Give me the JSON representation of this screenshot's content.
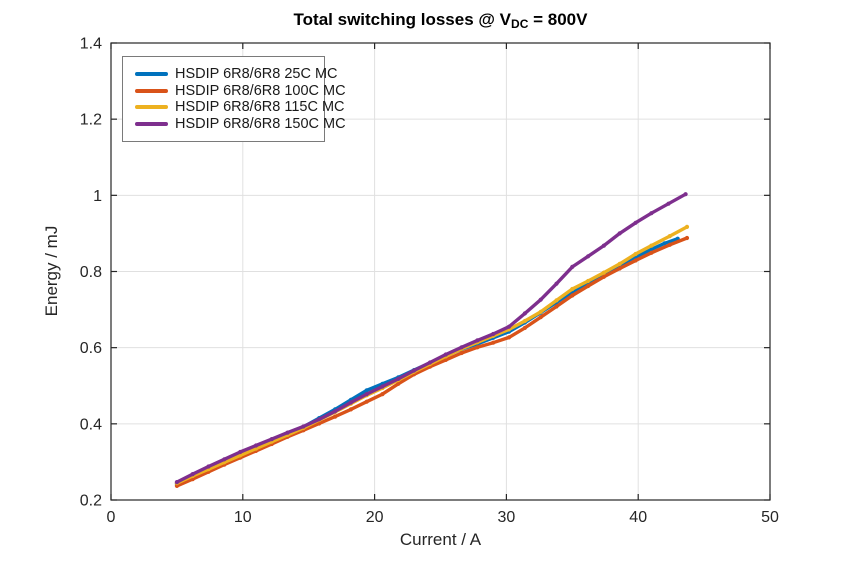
{
  "colors": {
    "axis": "#262626",
    "tick_text": "#262626",
    "grid": "#e0e0e0",
    "background": "#ffffff",
    "legend_border": "#7a7a7a"
  },
  "chart_data": {
    "type": "line",
    "title": {
      "prefix": "Total switching losses @ V",
      "subscript": "DC",
      "suffix": " = 800V"
    },
    "xlabel": "Current / A",
    "ylabel": "Energy / mJ",
    "xlim": [
      0,
      50
    ],
    "ylim": [
      0.2,
      1.4
    ],
    "xticks": [
      0,
      10,
      20,
      30,
      40,
      50
    ],
    "xtick_labels": [
      "0",
      "10",
      "20",
      "30",
      "40",
      "50"
    ],
    "yticks": [
      0.2,
      0.4,
      0.6,
      0.8,
      1.0,
      1.2,
      1.4
    ],
    "ytick_labels": [
      "0.2",
      "0.4",
      "0.6",
      "0.8",
      "1",
      "1.2",
      "1.4"
    ],
    "grid": true,
    "legend_position": "top-left",
    "series": [
      {
        "name": "HSDIP 6R8/6R8 25C MC",
        "color": "#0072BD",
        "points": [
          [
            5.0,
            0.242
          ],
          [
            6.2,
            0.262
          ],
          [
            7.4,
            0.281
          ],
          [
            8.6,
            0.3
          ],
          [
            9.8,
            0.32
          ],
          [
            11.0,
            0.337
          ],
          [
            12.2,
            0.355
          ],
          [
            13.4,
            0.374
          ],
          [
            14.6,
            0.392
          ],
          [
            15.8,
            0.415
          ],
          [
            17.0,
            0.438
          ],
          [
            18.2,
            0.463
          ],
          [
            19.4,
            0.488
          ],
          [
            20.6,
            0.505
          ],
          [
            21.8,
            0.522
          ],
          [
            23.0,
            0.541
          ],
          [
            24.2,
            0.56
          ],
          [
            25.4,
            0.578
          ],
          [
            26.6,
            0.596
          ],
          [
            27.8,
            0.61
          ],
          [
            29.0,
            0.626
          ],
          [
            30.2,
            0.642
          ],
          [
            31.4,
            0.666
          ],
          [
            32.6,
            0.692
          ],
          [
            33.8,
            0.719
          ],
          [
            35.0,
            0.746
          ],
          [
            36.2,
            0.77
          ],
          [
            37.4,
            0.793
          ],
          [
            38.6,
            0.816
          ],
          [
            39.8,
            0.838
          ],
          [
            41.0,
            0.858
          ],
          [
            42.0,
            0.874
          ],
          [
            43.0,
            0.886
          ]
        ]
      },
      {
        "name": "HSDIP 6R8/6R8 100C MC",
        "color": "#D95319",
        "points": [
          [
            5.0,
            0.237
          ],
          [
            6.2,
            0.255
          ],
          [
            7.4,
            0.274
          ],
          [
            8.6,
            0.293
          ],
          [
            9.8,
            0.311
          ],
          [
            11.0,
            0.329
          ],
          [
            12.2,
            0.347
          ],
          [
            13.4,
            0.366
          ],
          [
            14.6,
            0.383
          ],
          [
            15.8,
            0.401
          ],
          [
            17.0,
            0.419
          ],
          [
            18.2,
            0.438
          ],
          [
            19.4,
            0.458
          ],
          [
            20.6,
            0.478
          ],
          [
            21.8,
            0.505
          ],
          [
            23.0,
            0.53
          ],
          [
            24.2,
            0.55
          ],
          [
            25.4,
            0.568
          ],
          [
            26.6,
            0.586
          ],
          [
            27.8,
            0.601
          ],
          [
            29.0,
            0.613
          ],
          [
            30.2,
            0.627
          ],
          [
            31.4,
            0.652
          ],
          [
            32.6,
            0.68
          ],
          [
            33.8,
            0.708
          ],
          [
            35.0,
            0.737
          ],
          [
            36.2,
            0.762
          ],
          [
            37.4,
            0.786
          ],
          [
            38.6,
            0.808
          ],
          [
            39.8,
            0.829
          ],
          [
            41.0,
            0.849
          ],
          [
            42.4,
            0.87
          ],
          [
            43.7,
            0.888
          ]
        ]
      },
      {
        "name": "HSDIP 6R8/6R8 115C MC",
        "color": "#EDB120",
        "points": [
          [
            5.0,
            0.244
          ],
          [
            6.2,
            0.263
          ],
          [
            7.4,
            0.281
          ],
          [
            8.6,
            0.299
          ],
          [
            9.8,
            0.317
          ],
          [
            11.0,
            0.335
          ],
          [
            12.2,
            0.353
          ],
          [
            13.4,
            0.371
          ],
          [
            14.6,
            0.389
          ],
          [
            15.8,
            0.41
          ],
          [
            17.0,
            0.431
          ],
          [
            18.2,
            0.453
          ],
          [
            19.4,
            0.475
          ],
          [
            20.6,
            0.494
          ],
          [
            21.8,
            0.515
          ],
          [
            23.0,
            0.537
          ],
          [
            24.2,
            0.557
          ],
          [
            25.4,
            0.577
          ],
          [
            26.6,
            0.597
          ],
          [
            27.8,
            0.614
          ],
          [
            29.0,
            0.631
          ],
          [
            30.2,
            0.648
          ],
          [
            31.4,
            0.67
          ],
          [
            32.6,
            0.694
          ],
          [
            33.8,
            0.724
          ],
          [
            35.0,
            0.754
          ],
          [
            36.2,
            0.775
          ],
          [
            37.4,
            0.797
          ],
          [
            38.6,
            0.82
          ],
          [
            39.8,
            0.846
          ],
          [
            41.0,
            0.868
          ],
          [
            42.4,
            0.893
          ],
          [
            43.7,
            0.917
          ]
        ]
      },
      {
        "name": "HSDIP 6R8/6R8 150C MC",
        "color": "#7E2F8E",
        "points": [
          [
            5.0,
            0.247
          ],
          [
            6.2,
            0.268
          ],
          [
            7.4,
            0.288
          ],
          [
            8.6,
            0.307
          ],
          [
            9.8,
            0.326
          ],
          [
            11.0,
            0.343
          ],
          [
            12.2,
            0.36
          ],
          [
            13.4,
            0.377
          ],
          [
            14.6,
            0.393
          ],
          [
            15.8,
            0.412
          ],
          [
            17.0,
            0.433
          ],
          [
            18.2,
            0.456
          ],
          [
            19.4,
            0.478
          ],
          [
            20.6,
            0.498
          ],
          [
            21.8,
            0.518
          ],
          [
            23.0,
            0.54
          ],
          [
            24.2,
            0.561
          ],
          [
            25.4,
            0.582
          ],
          [
            26.6,
            0.601
          ],
          [
            27.8,
            0.619
          ],
          [
            29.0,
            0.636
          ],
          [
            30.2,
            0.655
          ],
          [
            31.4,
            0.69
          ],
          [
            32.6,
            0.726
          ],
          [
            33.8,
            0.768
          ],
          [
            35.0,
            0.812
          ],
          [
            36.2,
            0.84
          ],
          [
            37.4,
            0.868
          ],
          [
            38.6,
            0.9
          ],
          [
            39.8,
            0.928
          ],
          [
            41.0,
            0.953
          ],
          [
            42.3,
            0.978
          ],
          [
            43.6,
            1.003
          ]
        ]
      }
    ]
  }
}
